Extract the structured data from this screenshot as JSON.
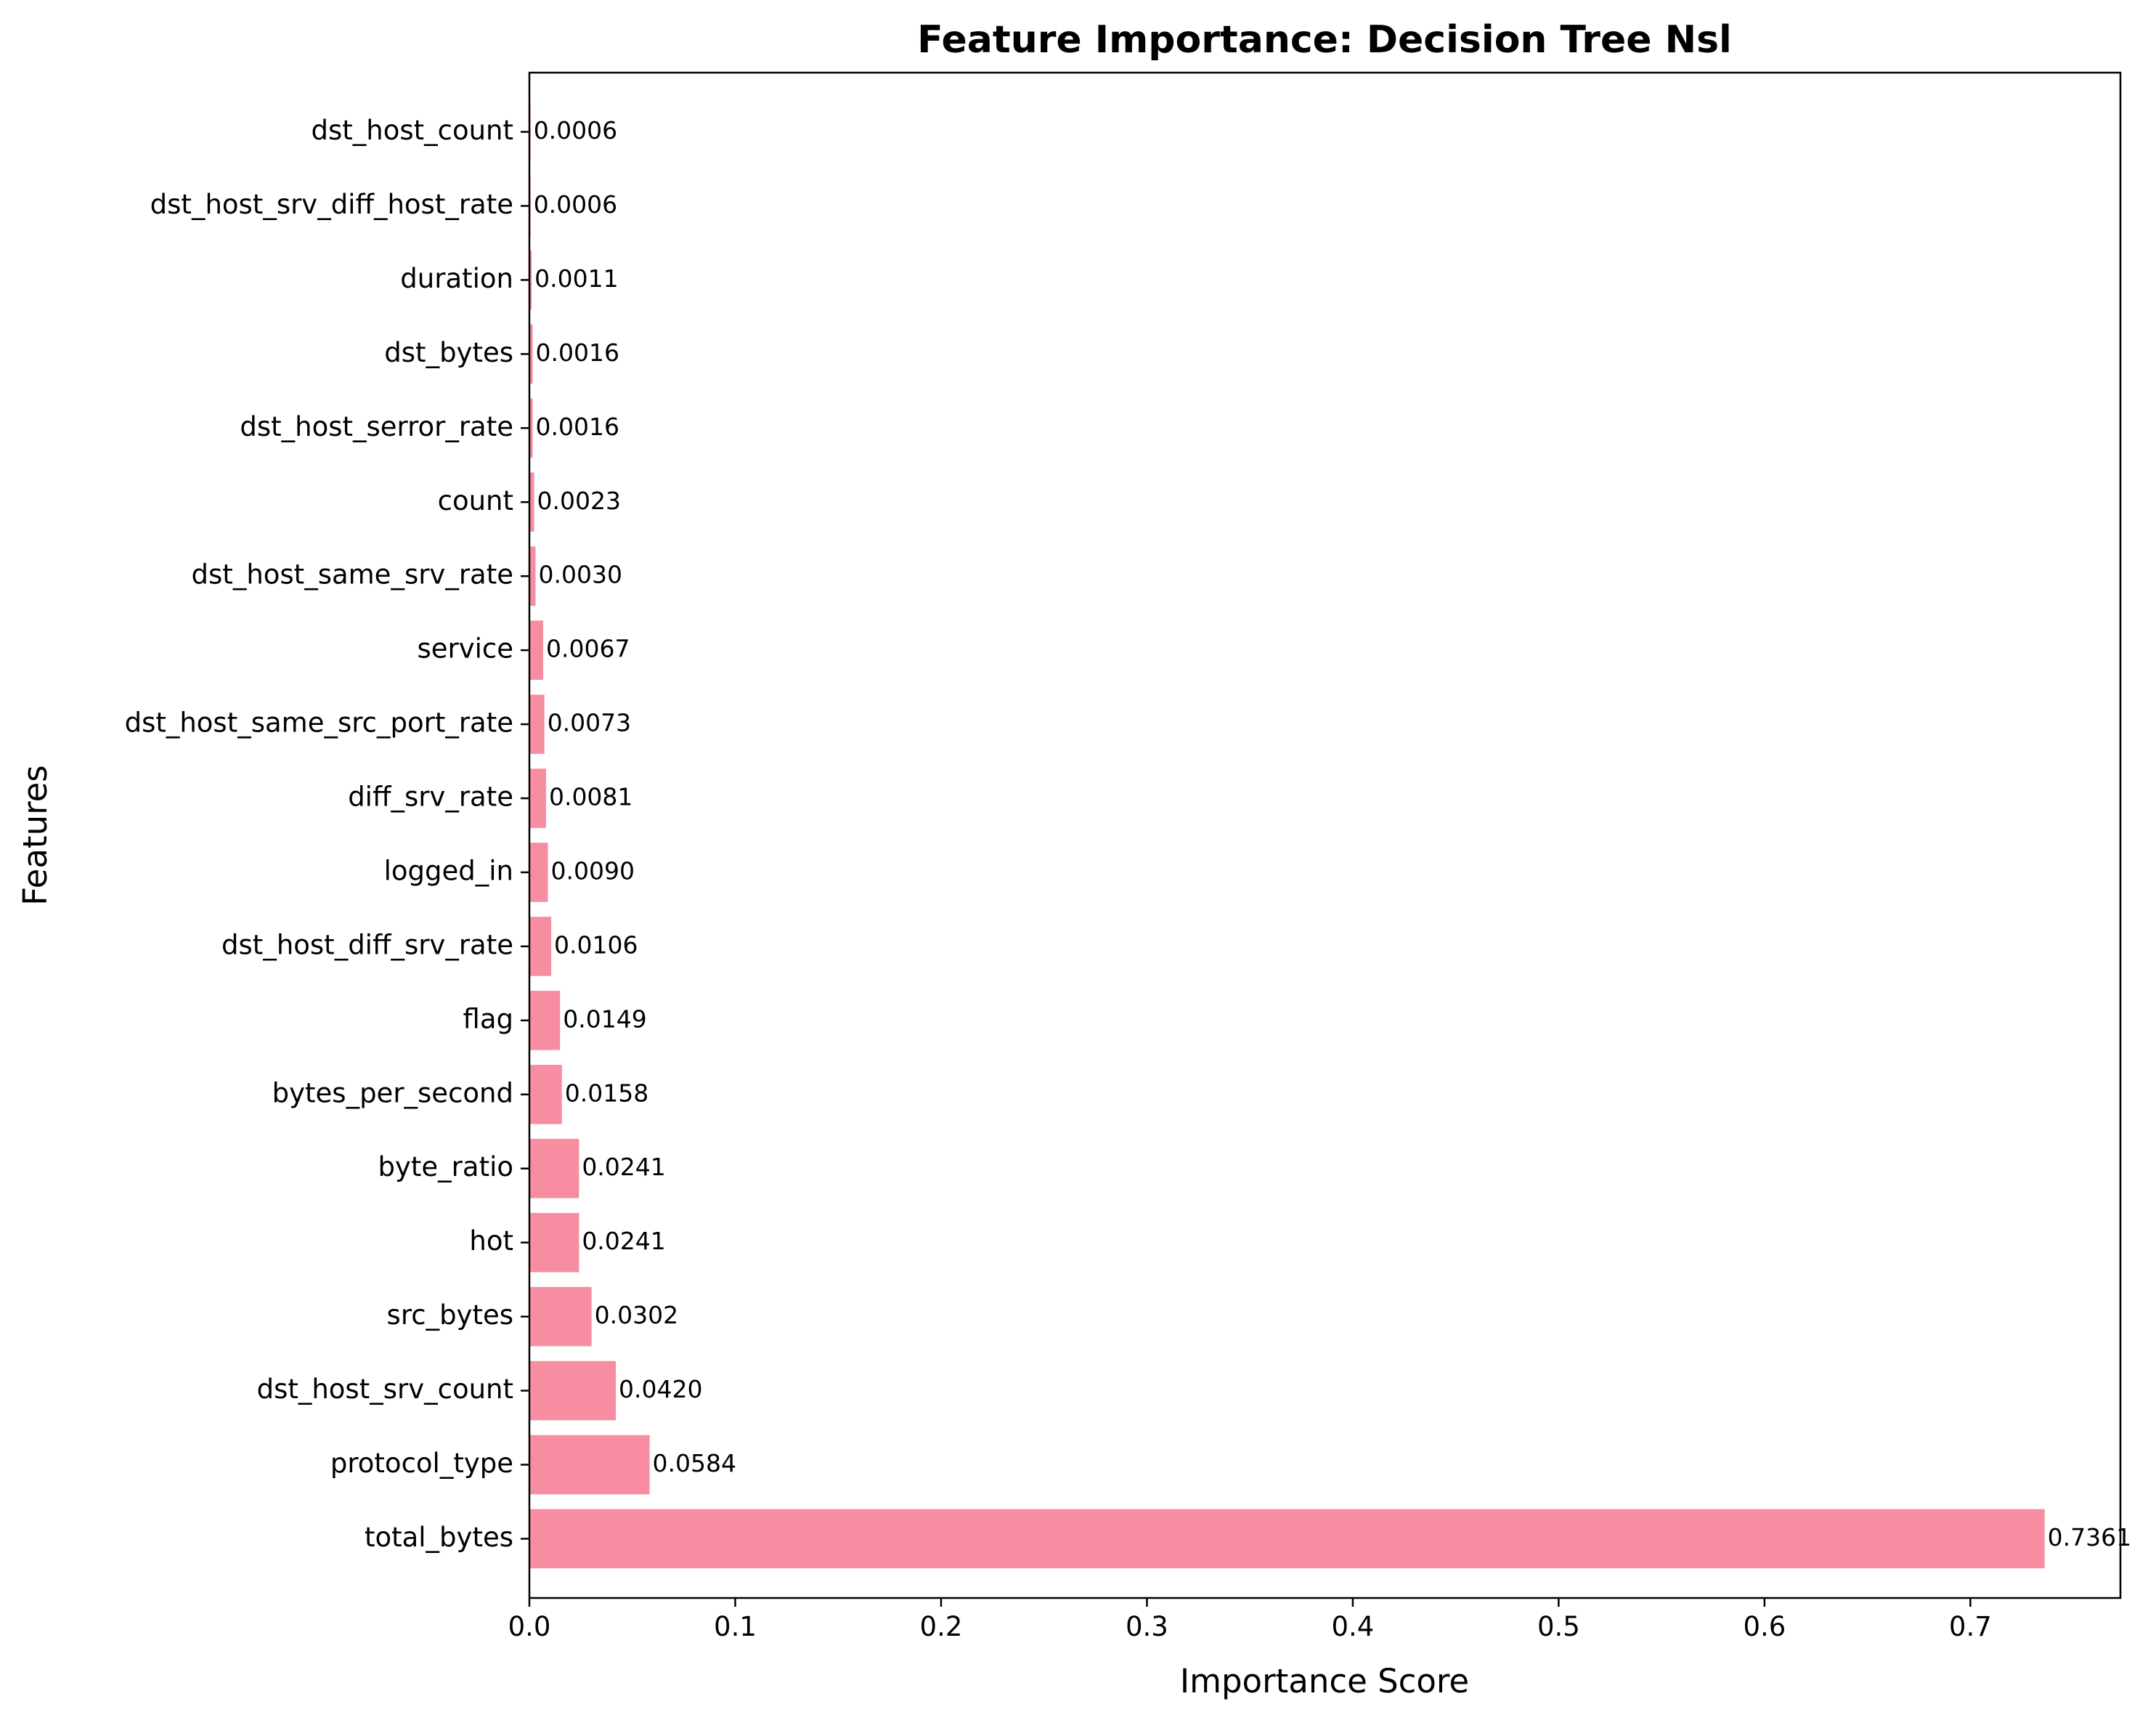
{
  "chart_data": {
    "type": "bar",
    "orientation": "horizontal",
    "title": "Feature Importance: Decision Tree Nsl",
    "xlabel": "Importance Score",
    "ylabel": "Features",
    "xlim": [
      0,
      0.7729
    ],
    "xticks": [
      "0.0",
      "0.1",
      "0.2",
      "0.3",
      "0.4",
      "0.5",
      "0.6",
      "0.7"
    ],
    "grid": false,
    "legend": "none",
    "bar_color": "#f78da0",
    "categories": [
      "total_bytes",
      "protocol_type",
      "dst_host_srv_count",
      "src_bytes",
      "hot",
      "byte_ratio",
      "bytes_per_second",
      "flag",
      "dst_host_diff_srv_rate",
      "logged_in",
      "diff_srv_rate",
      "dst_host_same_src_port_rate",
      "service",
      "dst_host_same_srv_rate",
      "count",
      "dst_host_serror_rate",
      "dst_bytes",
      "duration",
      "dst_host_srv_diff_host_rate",
      "dst_host_count"
    ],
    "values": [
      0.7361,
      0.0584,
      0.042,
      0.0302,
      0.0241,
      0.0241,
      0.0158,
      0.0149,
      0.0106,
      0.009,
      0.0081,
      0.0073,
      0.0067,
      0.003,
      0.0023,
      0.0016,
      0.0016,
      0.0011,
      0.0006,
      0.0006
    ],
    "value_labels": [
      "0.7361",
      "0.0584",
      "0.0420",
      "0.0302",
      "0.0241",
      "0.0241",
      "0.0158",
      "0.0149",
      "0.0106",
      "0.0090",
      "0.0081",
      "0.0073",
      "0.0067",
      "0.0030",
      "0.0023",
      "0.0016",
      "0.0016",
      "0.0011",
      "0.0006",
      "0.0006"
    ]
  }
}
